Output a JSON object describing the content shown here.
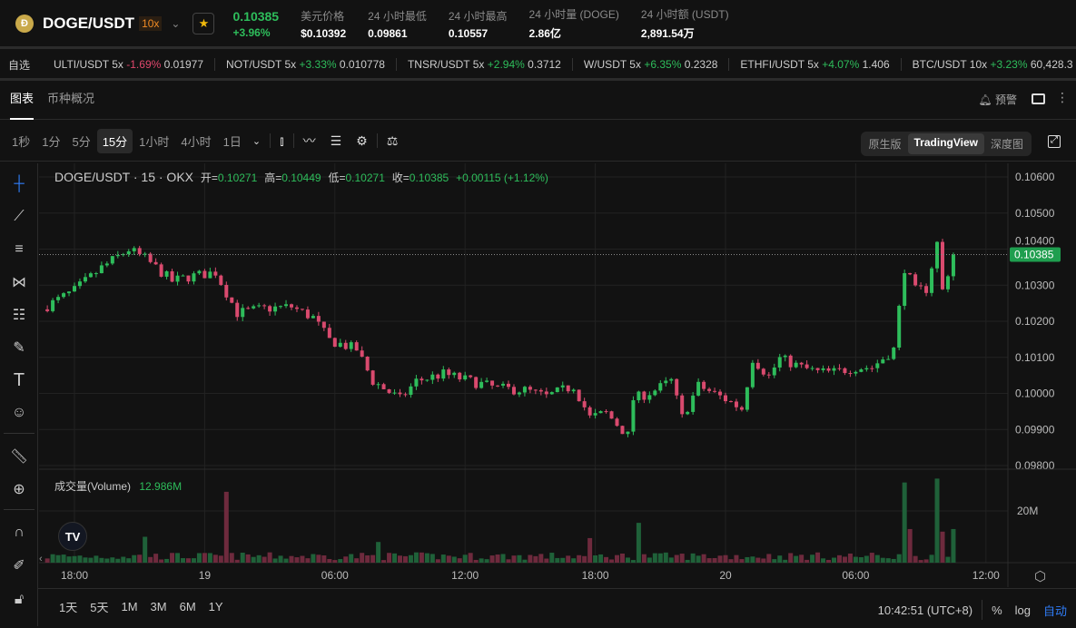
{
  "header": {
    "pair": "DOGE/USDT",
    "leverage": "10x",
    "last_price": "0.10385",
    "change_pct": "+3.96%",
    "stats": [
      {
        "label": "美元价格",
        "value": "$0.10392"
      },
      {
        "label": "24 小时最低",
        "value": "0.09861"
      },
      {
        "label": "24 小时最高",
        "value": "0.10557"
      },
      {
        "label": "24 小时量 (DOGE)",
        "value": "2.86亿"
      },
      {
        "label": "24 小时额 (USDT)",
        "value": "2,891.54万"
      }
    ]
  },
  "ticker": {
    "label": "自选",
    "items": [
      {
        "pair": "ULTI/USDT 5x",
        "change": "-1.69%",
        "price": "0.01977",
        "dir": "dn"
      },
      {
        "pair": "NOT/USDT 5x",
        "change": "+3.33%",
        "price": "0.010778",
        "dir": "up"
      },
      {
        "pair": "TNSR/USDT 5x",
        "change": "+2.94%",
        "price": "0.3712",
        "dir": "up"
      },
      {
        "pair": "W/USDT 5x",
        "change": "+6.35%",
        "price": "0.2328",
        "dir": "up"
      },
      {
        "pair": "ETHFI/USDT 5x",
        "change": "+4.07%",
        "price": "1.406",
        "dir": "up"
      },
      {
        "pair": "BTC/USDT 10x",
        "change": "+3.23%",
        "price": "60,428.3",
        "dir": "up"
      }
    ]
  },
  "tabs": [
    {
      "label": "图表",
      "active": true
    },
    {
      "label": "币种概况",
      "active": false
    }
  ],
  "alert_label": "预警",
  "timeframes": [
    "1秒",
    "1分",
    "5分",
    "15分",
    "1小时",
    "4小时",
    "1日"
  ],
  "active_timeframe": "15分",
  "views": [
    "原生版",
    "TradingView",
    "深度图"
  ],
  "active_view": "TradingView",
  "legend": {
    "title": "DOGE/USDT · 15 · OKX",
    "o_label": "开=",
    "o": "0.10271",
    "h_label": "高=",
    "h": "0.10449",
    "l_label": "低=",
    "l": "0.10271",
    "c_label": "收=",
    "c": "0.10385",
    "chg": "+0.00115 (+1.12%)"
  },
  "volume_legend": {
    "label": "成交量(Volume)",
    "value": "12.986M"
  },
  "ranges": [
    "1天",
    "5天",
    "1M",
    "3M",
    "6M",
    "1Y"
  ],
  "clock": "10:42:51 (UTC+8)",
  "bottom_opts": {
    "pct": "%",
    "log": "log",
    "auto": "自动"
  },
  "colors": {
    "up": "#2ebd5b",
    "down": "#d94a6e",
    "vol_up": "#1f6139",
    "vol_down": "#6e2a3d",
    "accent": "#2f7cf6"
  },
  "chart_data": {
    "type": "candlestick",
    "interval": "15m",
    "price_ticks": [
      "0.10600",
      "0.10500",
      "0.10400",
      "0.10300",
      "0.10200",
      "0.10100",
      "0.10000",
      "0.09900",
      "0.09800"
    ],
    "price_range": [
      0.098,
      0.106
    ],
    "current_price_label": "0.10385",
    "current_price": 0.10385,
    "time_ticks": [
      {
        "t": "18 18:00",
        "label": "18:00"
      },
      {
        "t": "19 00:00",
        "label": "19"
      },
      {
        "t": "19 06:00",
        "label": "06:00"
      },
      {
        "t": "19 12:00",
        "label": "12:00"
      },
      {
        "t": "19 18:00",
        "label": "18:00"
      },
      {
        "t": "20 00:00",
        "label": "20"
      },
      {
        "t": "20 06:00",
        "label": "06:00"
      },
      {
        "t": "20 12:00",
        "label": "12:00"
      }
    ],
    "volume_tick": {
      "label": "20M",
      "value": 20
    },
    "close_path": [
      [
        "18 16:45",
        0.10243
      ],
      [
        "18 18:00",
        0.10285
      ],
      [
        "18 19:15",
        0.10348
      ],
      [
        "18 20:30",
        0.10399
      ],
      [
        "18 21:15",
        0.10374
      ],
      [
        "18 22:30",
        0.10311
      ],
      [
        "18 23:15",
        0.10323
      ],
      [
        "19 00:30",
        0.10336
      ],
      [
        "19 01:30",
        0.10223
      ],
      [
        "19 02:45",
        0.10235
      ],
      [
        "19 04:00",
        0.1024
      ],
      [
        "19 05:00",
        0.1021
      ],
      [
        "19 05:45",
        0.10147
      ],
      [
        "19 07:00",
        0.10122
      ],
      [
        "19 07:45",
        0.10034
      ],
      [
        "19 09:00",
        0.09984
      ],
      [
        "19 09:45",
        0.10034
      ],
      [
        "19 11:00",
        0.10054
      ],
      [
        "19 12:15",
        0.10034
      ],
      [
        "19 13:30",
        0.10014
      ],
      [
        "19 14:45",
        0.10009
      ],
      [
        "19 15:45",
        0.09991
      ],
      [
        "19 17:00",
        0.10021
      ],
      [
        "19 17:45",
        0.09933
      ],
      [
        "19 18:30",
        0.09946
      ],
      [
        "19 19:30",
        0.09883
      ],
      [
        "19 19:45",
        0.09984
      ],
      [
        "19 20:45",
        0.10009
      ],
      [
        "19 21:30",
        0.10034
      ],
      [
        "19 22:00",
        0.09933
      ],
      [
        "19 22:45",
        0.10021
      ],
      [
        "20 00:00",
        0.09984
      ],
      [
        "20 00:45",
        0.09958
      ],
      [
        "20 01:15",
        0.10097
      ],
      [
        "20 02:00",
        0.10047
      ],
      [
        "20 02:30",
        0.10097
      ],
      [
        "20 03:30",
        0.10072
      ],
      [
        "20 04:15",
        0.10059
      ],
      [
        "20 05:00",
        0.10059
      ],
      [
        "20 06:00",
        0.10072
      ],
      [
        "20 06:45",
        0.10072
      ],
      [
        "20 07:15",
        0.10097
      ],
      [
        "20 07:45",
        0.10122
      ],
      [
        "20 08:15",
        0.10348
      ],
      [
        "20 08:45",
        0.10285
      ],
      [
        "20 09:15",
        0.1029
      ],
      [
        "20 09:45",
        0.10416
      ],
      [
        "20 10:00",
        0.10285
      ],
      [
        "20 10:30",
        0.10385
      ]
    ],
    "volume_spikes_m": [
      [
        "18 21:15",
        10
      ],
      [
        "19 01:00",
        27.4
      ],
      [
        "19 08:00",
        8
      ],
      [
        "19 17:45",
        9.5
      ],
      [
        "19 20:00",
        15.4
      ],
      [
        "20 08:15",
        31
      ],
      [
        "20 08:30",
        13
      ],
      [
        "20 09:45",
        32.5
      ],
      [
        "20 10:00",
        12
      ],
      [
        "20 10:30",
        13
      ]
    ]
  }
}
